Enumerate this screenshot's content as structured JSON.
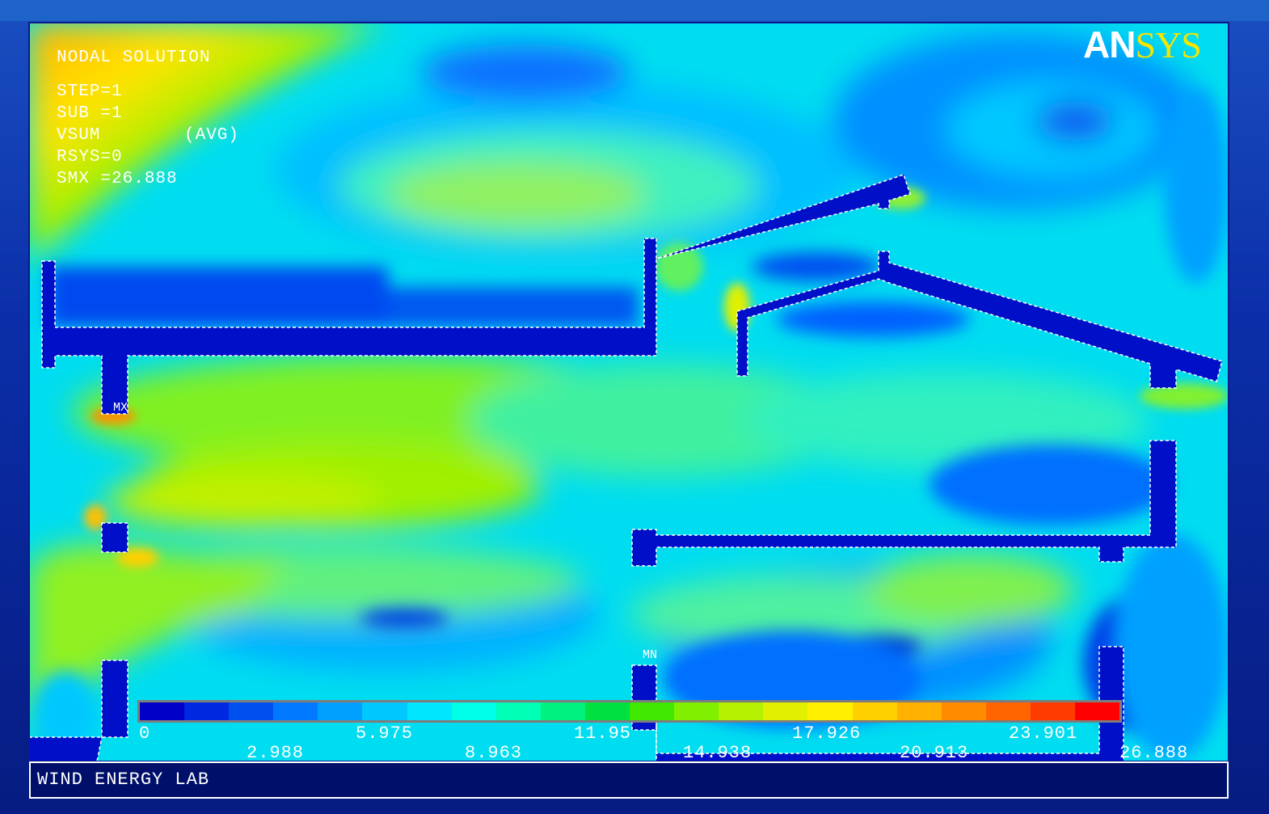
{
  "header": {
    "title": "NODAL SOLUTION",
    "step": "STEP=1",
    "sub": "SUB =1",
    "vsum": "VSUM",
    "avg": "(AVG)",
    "rsys": "RSYS=0",
    "smx": "SMX =26.888"
  },
  "logo": {
    "part1": "AN",
    "part2": "SYS"
  },
  "markers": {
    "max": "MX",
    "min": "MN"
  },
  "legend": {
    "ticks_top": [
      "0",
      "5.975",
      "11.95",
      "17.926",
      "23.901"
    ],
    "ticks_bottom": [
      "2.988",
      "8.963",
      "14.938",
      "20.913",
      "26.888"
    ],
    "min": 0,
    "max": 26.888,
    "colors": [
      "#0000c8",
      "#0028e0",
      "#0050f0",
      "#0078ff",
      "#00a0ff",
      "#00c8ff",
      "#00e6ff",
      "#00ffe8",
      "#00ffb4",
      "#00f080",
      "#00e040",
      "#40e800",
      "#80f000",
      "#b4f000",
      "#e0f000",
      "#fff000",
      "#ffd000",
      "#ffb000",
      "#ff8c00",
      "#ff6400",
      "#ff3c00",
      "#ff0000"
    ]
  },
  "footer": {
    "label": "WIND ENERGY LAB"
  }
}
